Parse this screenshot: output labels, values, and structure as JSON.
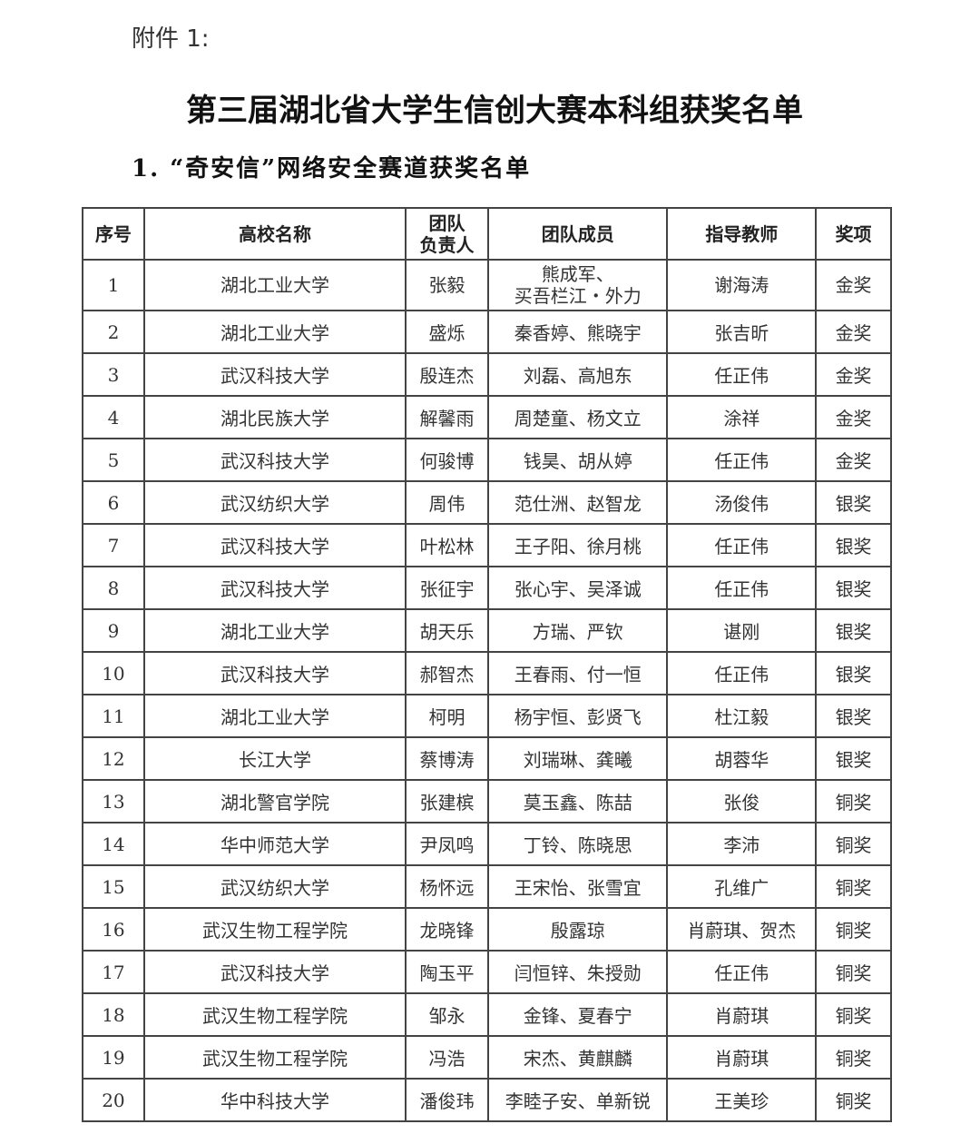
{
  "attachment_label": "附件 1:",
  "title": "第三届湖北省大学生信创大赛本科组获奖名单",
  "subtitle": "1. “奇安信”网络安全赛道获奖名单",
  "table": {
    "headers": [
      "序号",
      "高校名称",
      "团队\n负责人",
      "团队成员",
      "指导教师",
      "奖项"
    ],
    "rows": [
      [
        "1",
        "湖北工业大学",
        "张毅",
        "熊成军、\n买吾栏江・外力",
        "谢海涛",
        "金奖"
      ],
      [
        "2",
        "湖北工业大学",
        "盛烁",
        "秦香婷、熊晓宇",
        "张吉昕",
        "金奖"
      ],
      [
        "3",
        "武汉科技大学",
        "殷连杰",
        "刘磊、高旭东",
        "任正伟",
        "金奖"
      ],
      [
        "4",
        "湖北民族大学",
        "解馨雨",
        "周楚童、杨文立",
        "涂祥",
        "金奖"
      ],
      [
        "5",
        "武汉科技大学",
        "何骏博",
        "钱昊、胡从婷",
        "任正伟",
        "金奖"
      ],
      [
        "6",
        "武汉纺织大学",
        "周伟",
        "范仕洲、赵智龙",
        "汤俊伟",
        "银奖"
      ],
      [
        "7",
        "武汉科技大学",
        "叶松林",
        "王子阳、徐月桃",
        "任正伟",
        "银奖"
      ],
      [
        "8",
        "武汉科技大学",
        "张征宇",
        "张心宇、吴泽诚",
        "任正伟",
        "银奖"
      ],
      [
        "9",
        "湖北工业大学",
        "胡天乐",
        "方瑞、严钦",
        "谌刚",
        "银奖"
      ],
      [
        "10",
        "武汉科技大学",
        "郝智杰",
        "王春雨、付一恒",
        "任正伟",
        "银奖"
      ],
      [
        "11",
        "湖北工业大学",
        "柯明",
        "杨宇恒、彭贤飞",
        "杜江毅",
        "银奖"
      ],
      [
        "12",
        "长江大学",
        "蔡博涛",
        "刘瑞琳、龚曦",
        "胡蓉华",
        "银奖"
      ],
      [
        "13",
        "湖北警官学院",
        "张建槟",
        "莫玉鑫、陈喆",
        "张俊",
        "铜奖"
      ],
      [
        "14",
        "华中师范大学",
        "尹凤鸣",
        "丁铃、陈晓思",
        "李沛",
        "铜奖"
      ],
      [
        "15",
        "武汉纺织大学",
        "杨怀远",
        "王宋怡、张雪宜",
        "孔维广",
        "铜奖"
      ],
      [
        "16",
        "武汉生物工程学院",
        "龙晓锋",
        "殷露琼",
        "肖蔚琪、贺杰",
        "铜奖"
      ],
      [
        "17",
        "武汉科技大学",
        "陶玉平",
        "闫恒锌、朱授勋",
        "任正伟",
        "铜奖"
      ],
      [
        "18",
        "武汉生物工程学院",
        "邹永",
        "金锋、夏春宁",
        "肖蔚琪",
        "铜奖"
      ],
      [
        "19",
        "武汉生物工程学院",
        "冯浩",
        "宋杰、黄麒麟",
        "肖蔚琪",
        "铜奖"
      ],
      [
        "20",
        "华中科技大学",
        "潘俊玮",
        "李睦子安、单新锐",
        "王美珍",
        "铜奖"
      ]
    ]
  }
}
